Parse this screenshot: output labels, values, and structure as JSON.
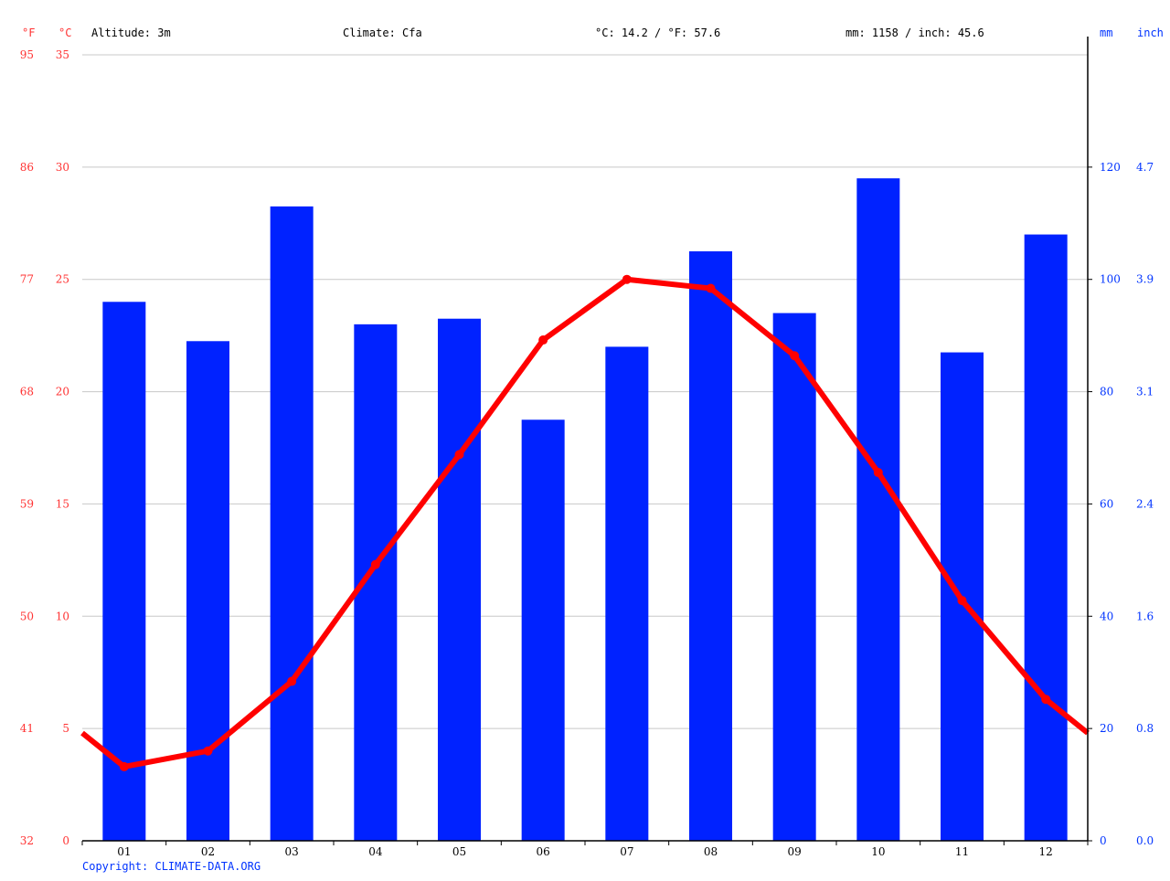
{
  "header": {
    "unit_f": "°F",
    "unit_c": "°C",
    "altitude": "Altitude: 3m",
    "climate": "Climate: Cfa",
    "avg_temp": "°C: 14.2 / °F: 57.6",
    "precip_total": "mm: 1158 / inch: 45.6",
    "unit_mm": "mm",
    "unit_inch": "inch"
  },
  "copyright": "Copyright: CLIMATE-DATA.ORG",
  "colors": {
    "temperature": "#ff0000",
    "precipitation": "#0022ff",
    "grid": "#c8c8c8",
    "left_axis_text": "#ff3333",
    "right_axis_text": "#0033ff"
  },
  "chart_data": {
    "type": "bar+line",
    "categories": [
      "01",
      "02",
      "03",
      "04",
      "05",
      "06",
      "07",
      "08",
      "09",
      "10",
      "11",
      "12"
    ],
    "series": [
      {
        "type": "bar",
        "unit": "mm",
        "axis": "right",
        "values": [
          96,
          89,
          113,
          92,
          93,
          75,
          88,
          105,
          94,
          118,
          87,
          108
        ]
      },
      {
        "type": "line",
        "unit": "°C",
        "axis": "left",
        "values": [
          3.3,
          4.0,
          7.1,
          12.3,
          17.2,
          22.3,
          25.0,
          24.6,
          21.6,
          16.4,
          10.7,
          6.3
        ]
      }
    ],
    "left_axis_c": {
      "ylim": [
        0,
        35
      ],
      "ticks": [
        "0",
        "5",
        "10",
        "15",
        "20",
        "25",
        "30",
        "35"
      ]
    },
    "left_axis_f": {
      "ticks": [
        "32",
        "41",
        "50",
        "59",
        "68",
        "77",
        "86",
        "95"
      ]
    },
    "right_axis_mm": {
      "ylim": [
        0,
        140
      ],
      "ticks": [
        "0",
        "20",
        "40",
        "60",
        "80",
        "100",
        "120"
      ]
    },
    "right_axis_inch": {
      "ticks": [
        "0.0",
        "0.8",
        "1.6",
        "2.4",
        "3.1",
        "3.9",
        "4.7"
      ]
    },
    "grid": true
  }
}
